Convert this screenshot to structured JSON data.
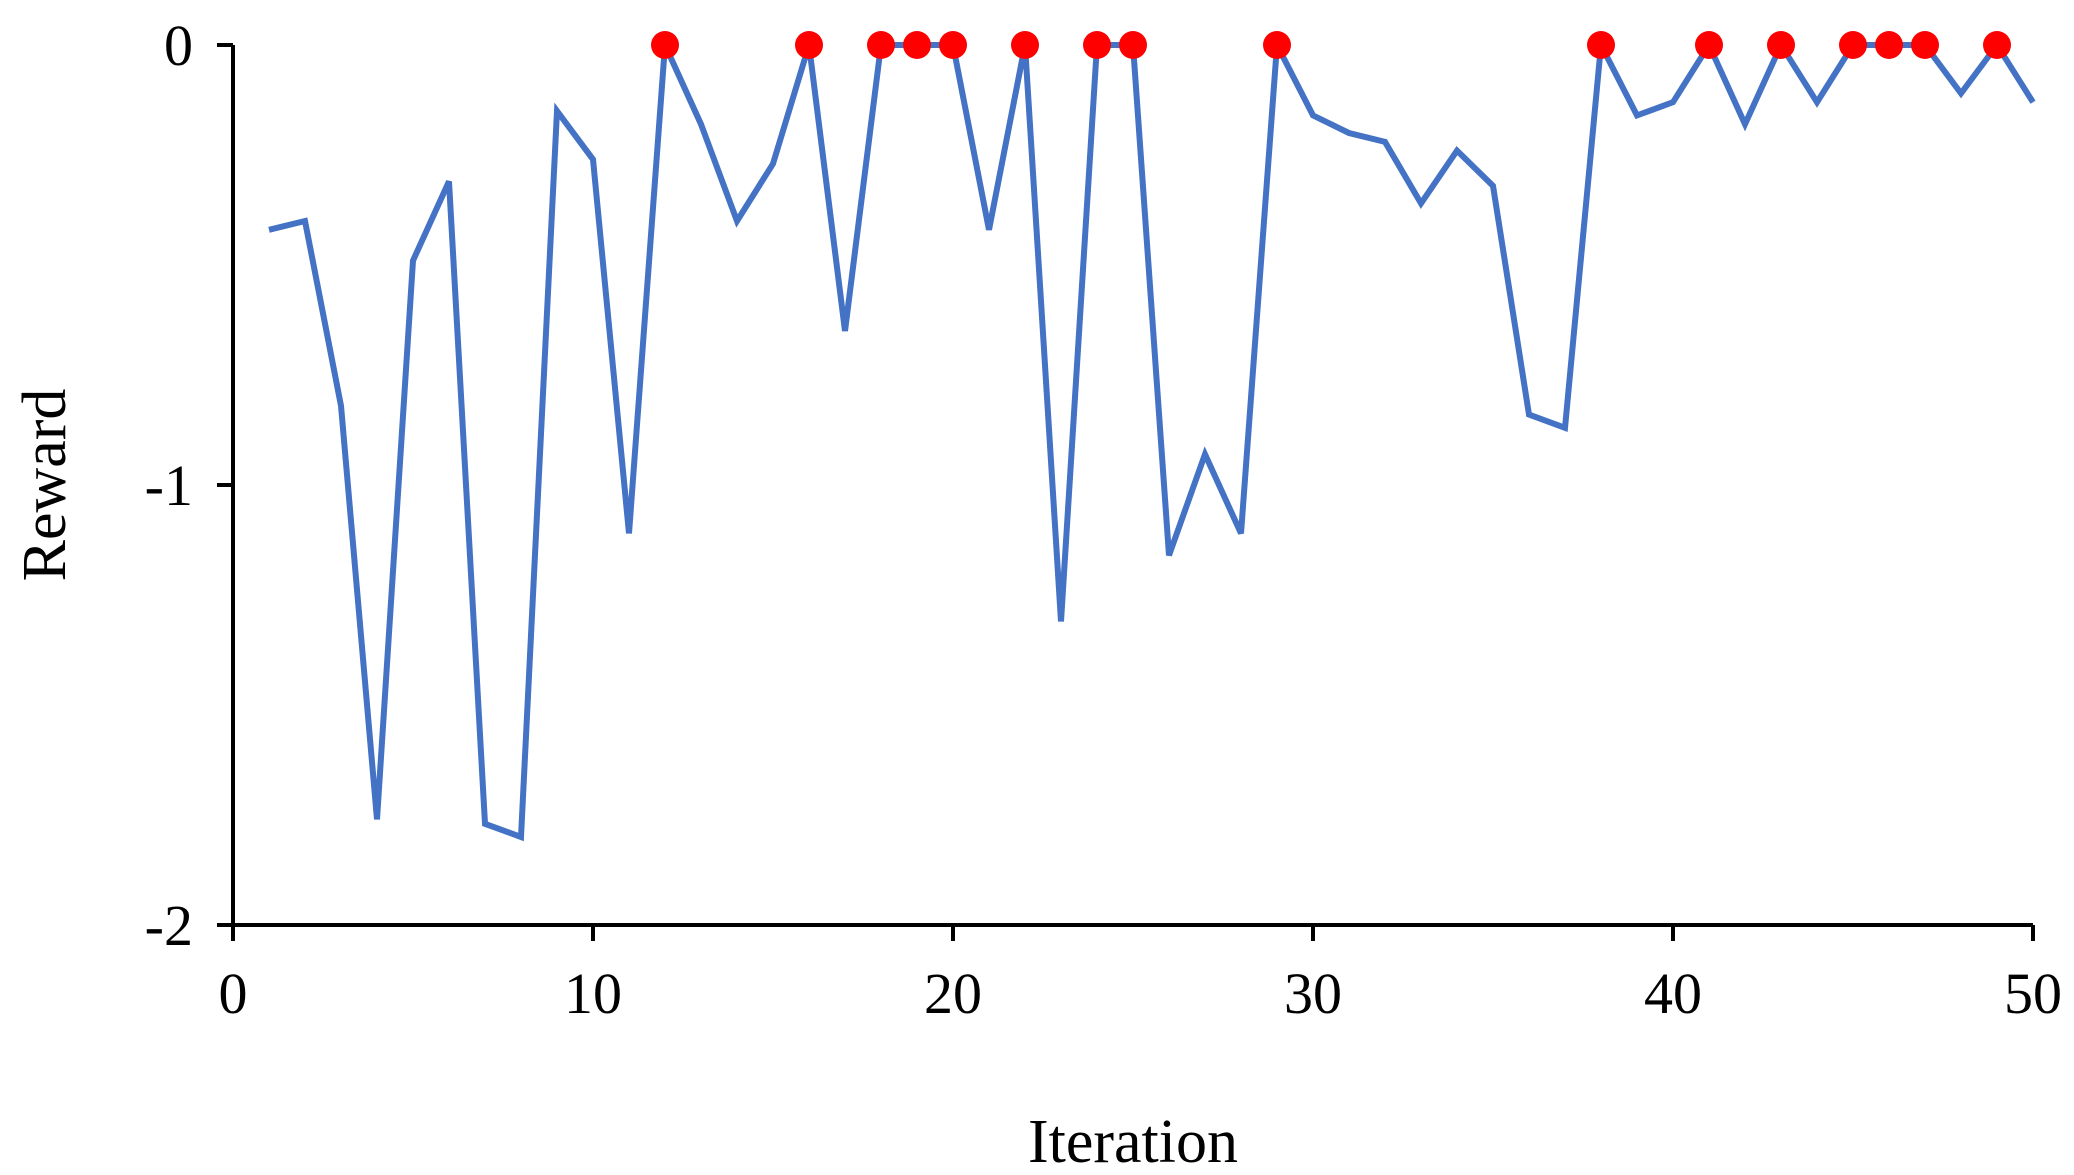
{
  "chart_data": {
    "type": "line",
    "title": "",
    "xlabel": "Iteration",
    "ylabel": "Reward",
    "xlim": [
      0,
      50
    ],
    "ylim": [
      -2,
      0
    ],
    "xticks": [
      0,
      10,
      20,
      30,
      40,
      50
    ],
    "xtick_labels": [
      "0",
      "10",
      "20",
      "30",
      "40",
      "50"
    ],
    "yticks": [
      0,
      -1,
      -2
    ],
    "ytick_labels": [
      "0",
      "-1",
      "-2"
    ],
    "grid": false,
    "legend": "none",
    "series": [
      {
        "color": "#4472C4",
        "x": [
          1,
          2,
          3,
          4,
          5,
          6,
          7,
          8,
          9,
          10,
          11,
          12,
          13,
          14,
          15,
          16,
          17,
          18,
          19,
          20,
          21,
          22,
          23,
          24,
          25,
          26,
          27,
          28,
          29,
          30,
          31,
          32,
          33,
          34,
          35,
          36,
          37,
          38,
          39,
          40,
          41,
          42,
          43,
          44,
          45,
          46,
          47,
          48,
          49,
          50
        ],
        "y": [
          -0.42,
          -0.4,
          -0.82,
          -1.76,
          -0.49,
          -0.31,
          -1.77,
          -1.8,
          -0.15,
          -0.26,
          -1.11,
          0,
          -0.18,
          -0.4,
          -0.27,
          0,
          -0.65,
          0,
          0,
          0,
          -0.42,
          0,
          -1.31,
          0,
          0,
          -1.16,
          -0.93,
          -1.11,
          0,
          -0.16,
          -0.2,
          -0.22,
          -0.36,
          -0.24,
          -0.32,
          -0.84,
          -0.87,
          0,
          -0.16,
          -0.13,
          0,
          -0.18,
          0,
          -0.13,
          0,
          0,
          0,
          -0.11,
          0,
          -0.13
        ]
      }
    ],
    "highlighted_points": {
      "color": "#FF0000",
      "x": [
        12,
        16,
        18,
        19,
        20,
        22,
        24,
        25,
        29,
        38,
        41,
        43,
        45,
        46,
        47,
        49
      ],
      "y": [
        0,
        0,
        0,
        0,
        0,
        0,
        0,
        0,
        0,
        0,
        0,
        0,
        0,
        0,
        0,
        0
      ]
    }
  }
}
